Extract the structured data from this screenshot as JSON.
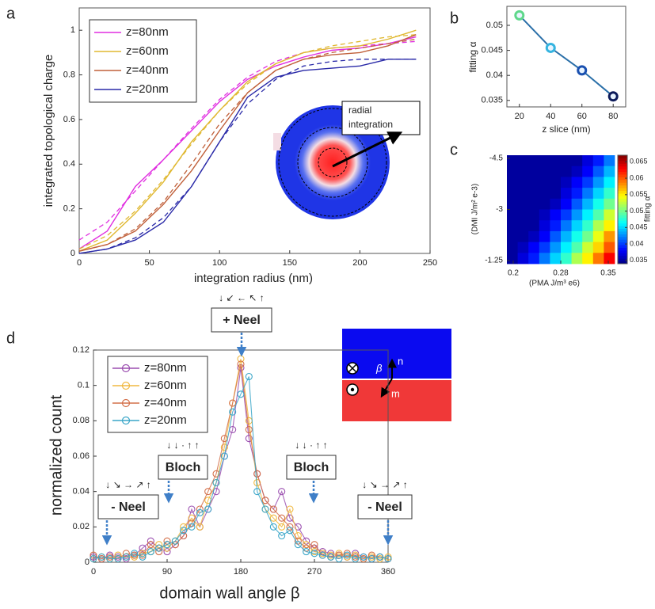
{
  "chart_data": [
    {
      "type": "line",
      "panel_label": "a",
      "xlabel": "integration radius (nm)",
      "ylabel": "integrated topological charge",
      "x": [
        0,
        20,
        40,
        60,
        80,
        100,
        120,
        140,
        160,
        180,
        200,
        220,
        240
      ],
      "series": [
        {
          "name": "z=80nm",
          "color": "#e02ee0",
          "values": [
            0.02,
            0.1,
            0.3,
            0.42,
            0.55,
            0.68,
            0.78,
            0.84,
            0.88,
            0.91,
            0.92,
            0.94,
            0.97
          ],
          "fit_values": [
            0.06,
            0.14,
            0.28,
            0.42,
            0.56,
            0.69,
            0.79,
            0.86,
            0.9,
            0.92,
            0.93,
            0.94,
            0.95
          ]
        },
        {
          "name": "z=60nm",
          "color": "#e0b830",
          "values": [
            0.01,
            0.06,
            0.18,
            0.32,
            0.5,
            0.64,
            0.77,
            0.85,
            0.9,
            0.92,
            0.93,
            0.96,
            1.0
          ],
          "fit_values": [
            0.02,
            0.08,
            0.19,
            0.33,
            0.49,
            0.64,
            0.76,
            0.85,
            0.9,
            0.93,
            0.95,
            0.97,
            0.98
          ]
        },
        {
          "name": "z=40nm",
          "color": "#c0603a",
          "values": [
            0.01,
            0.04,
            0.1,
            0.22,
            0.37,
            0.55,
            0.72,
            0.82,
            0.87,
            0.89,
            0.9,
            0.93,
            0.98
          ],
          "fit_values": [
            0.01,
            0.04,
            0.11,
            0.23,
            0.4,
            0.58,
            0.72,
            0.82,
            0.87,
            0.9,
            0.92,
            0.94,
            0.96
          ]
        },
        {
          "name": "z=20nm",
          "color": "#2a2aa8",
          "values": [
            0.0,
            0.02,
            0.06,
            0.14,
            0.3,
            0.5,
            0.7,
            0.79,
            0.82,
            0.83,
            0.84,
            0.87,
            0.87
          ],
          "fit_values": [
            0.0,
            0.02,
            0.07,
            0.16,
            0.3,
            0.5,
            0.67,
            0.78,
            0.84,
            0.86,
            0.87,
            0.87,
            0.87
          ]
        }
      ],
      "xlim": [
        0,
        250
      ],
      "ylim": [
        0,
        1.1
      ],
      "xticks": [
        0,
        50,
        100,
        150,
        200,
        250
      ],
      "yticks": [
        0,
        0.2,
        0.4,
        0.6,
        0.8,
        1
      ],
      "annotation": [
        "radial",
        "integration"
      ]
    },
    {
      "type": "line",
      "panel_label": "b",
      "xlabel": "z slice (nm)",
      "ylabel": "fitting α",
      "x": [
        20,
        40,
        60,
        80
      ],
      "values": [
        0.052,
        0.0455,
        0.041,
        0.0358
      ],
      "color": "#2a6fa8",
      "marker_colors": [
        "#5fd88a",
        "#35b4e0",
        "#1a50b0",
        "#0c1a5a"
      ],
      "xlim": [
        12,
        88
      ],
      "ylim": [
        0.0337,
        0.0538
      ],
      "xticks": [
        20,
        40,
        60,
        80
      ],
      "yticks": [
        0.035,
        0.04,
        0.045,
        0.05
      ]
    },
    {
      "type": "heatmap",
      "panel_label": "c",
      "xlabel": "(PMA J/m³ e6)",
      "ylabel": "(DMI J/m² e-3)",
      "colorbar_label": "fitting α",
      "xlim": [
        0.2,
        0.35
      ],
      "ylim": [
        -4.5,
        -1.25
      ],
      "xticks": [
        0.2,
        {
          "value": 0.275,
          "label": "0.28"
        },
        0.35
      ],
      "yticks": [
        -4.5,
        {
          "value": -2.875,
          "label": "-3"
        },
        -1.25
      ],
      "clim": [
        0.034,
        0.067
      ],
      "cticks": [
        0.035,
        0.04,
        0.045,
        0.05,
        0.055,
        0.06,
        0.065
      ],
      "z": [
        [
          0.035,
          0.035,
          0.035,
          0.035,
          0.035,
          0.035,
          0.035,
          0.037,
          0.039,
          0.042
        ],
        [
          0.035,
          0.035,
          0.035,
          0.035,
          0.035,
          0.035,
          0.036,
          0.038,
          0.041,
          0.044
        ],
        [
          0.035,
          0.035,
          0.035,
          0.035,
          0.035,
          0.036,
          0.038,
          0.04,
          0.043,
          0.046
        ],
        [
          0.035,
          0.035,
          0.035,
          0.035,
          0.035,
          0.037,
          0.039,
          0.042,
          0.045,
          0.048
        ],
        [
          0.035,
          0.035,
          0.035,
          0.035,
          0.036,
          0.038,
          0.041,
          0.044,
          0.047,
          0.05
        ],
        [
          0.035,
          0.035,
          0.035,
          0.036,
          0.038,
          0.04,
          0.043,
          0.046,
          0.049,
          0.053
        ],
        [
          0.035,
          0.035,
          0.035,
          0.037,
          0.039,
          0.042,
          0.045,
          0.048,
          0.052,
          0.055
        ],
        [
          0.035,
          0.035,
          0.036,
          0.038,
          0.041,
          0.044,
          0.047,
          0.05,
          0.054,
          0.058
        ],
        [
          0.035,
          0.036,
          0.038,
          0.04,
          0.043,
          0.046,
          0.049,
          0.053,
          0.056,
          0.06
        ],
        [
          0.035,
          0.037,
          0.039,
          0.042,
          0.045,
          0.048,
          0.052,
          0.055,
          0.059,
          0.063
        ]
      ]
    },
    {
      "type": "line",
      "panel_label": "d",
      "markers": true,
      "xlabel": "domain wall angle β",
      "ylabel": "normalized count",
      "x": [
        0,
        10,
        20,
        30,
        40,
        50,
        60,
        70,
        80,
        90,
        100,
        110,
        120,
        130,
        140,
        150,
        160,
        170,
        180,
        190,
        200,
        210,
        220,
        230,
        240,
        250,
        260,
        270,
        280,
        290,
        300,
        310,
        320,
        330,
        340,
        350,
        360
      ],
      "series": [
        {
          "name": "z=80nm",
          "color": "#9b4fb0",
          "values": [
            0.003,
            0.002,
            0.004,
            0.003,
            0.002,
            0.004,
            0.008,
            0.012,
            0.008,
            0.006,
            0.01,
            0.015,
            0.03,
            0.02,
            0.03,
            0.04,
            0.06,
            0.075,
            0.11,
            0.07,
            0.05,
            0.035,
            0.03,
            0.04,
            0.025,
            0.02,
            0.012,
            0.008,
            0.006,
            0.005,
            0.004,
            0.003,
            0.005,
            0.003,
            0.002,
            0.003,
            0.002
          ]
        },
        {
          "name": "z=60nm",
          "color": "#f0b840",
          "values": [
            0.002,
            0.003,
            0.002,
            0.004,
            0.003,
            0.003,
            0.005,
            0.006,
            0.01,
            0.008,
            0.012,
            0.02,
            0.025,
            0.02,
            0.035,
            0.045,
            0.065,
            0.09,
            0.115,
            0.08,
            0.045,
            0.03,
            0.025,
            0.02,
            0.03,
            0.015,
            0.01,
            0.006,
            0.005,
            0.004,
            0.005,
            0.003,
            0.004,
            0.002,
            0.003,
            0.002,
            0.003
          ]
        },
        {
          "name": "z=40nm",
          "color": "#d4704a",
          "values": [
            0.004,
            0.002,
            0.003,
            0.002,
            0.005,
            0.004,
            0.004,
            0.01,
            0.006,
            0.012,
            0.01,
            0.015,
            0.022,
            0.03,
            0.04,
            0.05,
            0.07,
            0.09,
            0.112,
            0.075,
            0.05,
            0.035,
            0.03,
            0.025,
            0.02,
            0.012,
            0.008,
            0.01,
            0.004,
            0.003,
            0.004,
            0.005,
            0.003,
            0.002,
            0.004,
            0.003,
            0.002
          ]
        },
        {
          "name": "z=20nm",
          "color": "#3aa6c8",
          "values": [
            0.002,
            0.003,
            0.002,
            0.002,
            0.003,
            0.005,
            0.003,
            0.006,
            0.008,
            0.01,
            0.012,
            0.018,
            0.02,
            0.028,
            0.03,
            0.045,
            0.06,
            0.085,
            0.095,
            0.105,
            0.04,
            0.03,
            0.02,
            0.015,
            0.018,
            0.01,
            0.006,
            0.005,
            0.004,
            0.003,
            0.002,
            0.004,
            0.002,
            0.003,
            0.002,
            0.003,
            0.002
          ]
        }
      ],
      "xlim": [
        0,
        360
      ],
      "ylim": [
        0,
        0.12
      ],
      "xticks": [
        0,
        90,
        180,
        270,
        360
      ],
      "yticks": [
        0,
        0.02,
        0.04,
        0.06,
        0.08,
        0.1,
        0.12
      ],
      "annotations": [
        {
          "text": "+ Neel",
          "glyphs": "↓ ↙ ← ↖ ↑"
        },
        {
          "text": "Bloch",
          "glyphs": "↓ ↓ · ↑ ↑"
        },
        {
          "text": "Bloch",
          "glyphs": "↓ ↓ · ↑ ↑"
        },
        {
          "text": "- Neel",
          "glyphs": "↓ ↘ → ↗ ↑"
        },
        {
          "text": "- Neel",
          "glyphs": "↓ ↘ → ↗ ↑"
        }
      ],
      "inset_labels": [
        "β",
        "n",
        "m"
      ]
    }
  ]
}
